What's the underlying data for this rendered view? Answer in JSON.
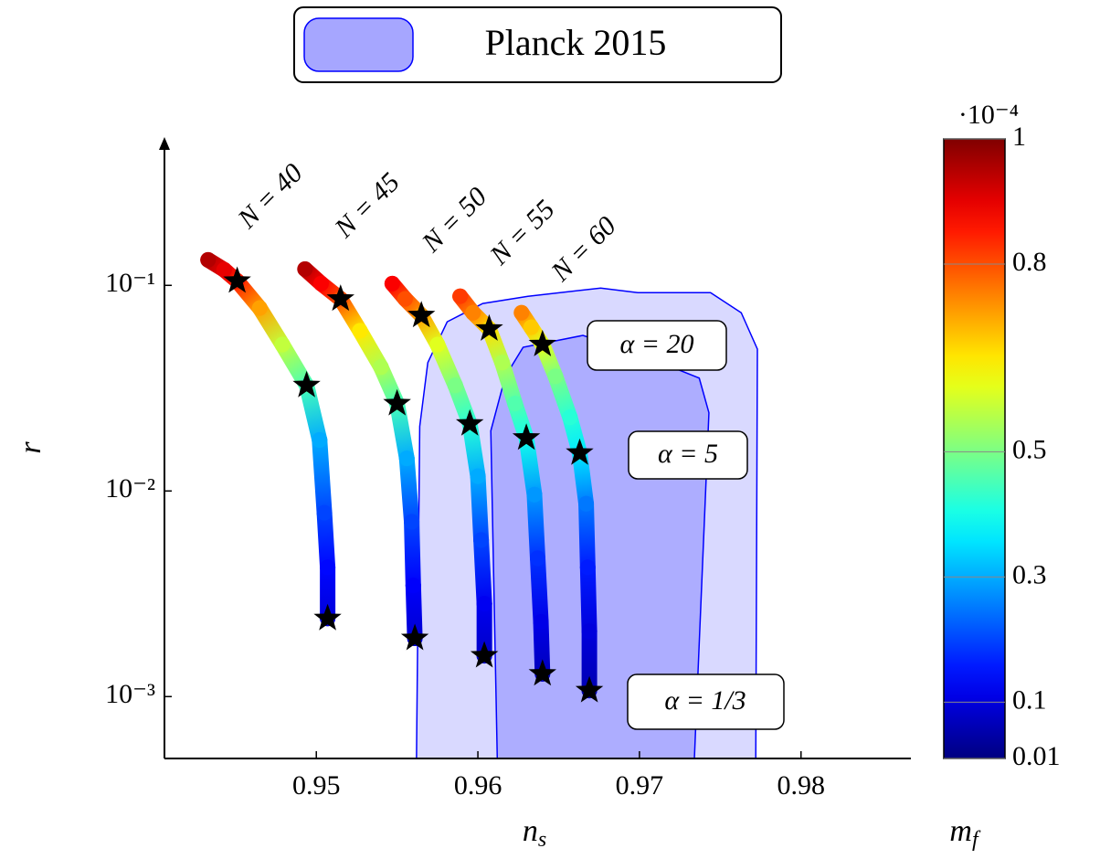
{
  "chart_data": {
    "type": "scatter",
    "x_label": {
      "text": "n",
      "sub": "s"
    },
    "y_label": "r",
    "xlim": [
      0.9406,
      0.9868
    ],
    "xticks": [
      0.95,
      0.96,
      0.97,
      0.98
    ],
    "ylim": [
      0.0005,
      0.5
    ],
    "y_log": true,
    "yticks": [
      {
        "value": 0.1,
        "label": "10⁻¹"
      },
      {
        "value": 0.01,
        "label": "10⁻²"
      },
      {
        "value": 0.001,
        "label": "10⁻³"
      }
    ],
    "colormap": "jet",
    "colorbar": {
      "label": {
        "text": "m",
        "sub": "f"
      },
      "multiplier": "·10⁻⁴",
      "lim": [
        0.01,
        1
      ],
      "ticks": [
        0.01,
        0.1,
        0.3,
        0.5,
        0.8,
        1
      ]
    },
    "legend": "top",
    "regions": [
      {
        "name": "Planck 2015",
        "color": "#0000ff",
        "outer": {
          "x": [
            0.9562,
            0.9564,
            0.9569,
            0.9581,
            0.9603,
            0.9631,
            0.9676,
            0.9699,
            0.9744,
            0.9763,
            0.9773,
            0.9772
          ],
          "y": [
            0.0005,
            0.0206,
            0.0421,
            0.0665,
            0.0816,
            0.0885,
            0.097,
            0.0922,
            0.0922,
            0.0736,
            0.049,
            0.0005
          ]
        },
        "inner": {
          "x": [
            0.9612,
            0.9608,
            0.9617,
            0.9628,
            0.9665,
            0.9699,
            0.9737,
            0.9743,
            0.9734
          ],
          "y": [
            0.0005,
            0.0196,
            0.0361,
            0.05,
            0.0571,
            0.0466,
            0.0354,
            0.024,
            0.0005
          ]
        }
      }
    ],
    "series": [
      {
        "name": "N = 40",
        "x": [
          0.9433,
          0.9443,
          0.9451,
          0.9465,
          0.9479,
          0.9494,
          0.9502,
          0.9505,
          0.9507,
          0.9507
        ],
        "y": [
          0.133,
          0.119,
          0.105,
          0.0775,
          0.0515,
          0.0326,
          0.0177,
          0.00783,
          0.00425,
          0.0024
        ],
        "m_f": [
          0.95,
          0.9,
          0.85,
          0.72,
          0.57,
          0.45,
          0.3,
          0.2,
          0.14,
          0.1
        ],
        "star_x": [
          0.9451,
          0.9494,
          0.9507
        ],
        "star_y": [
          0.105,
          0.0326,
          0.0024
        ]
      },
      {
        "name": "N = 45",
        "x": [
          0.9493,
          0.9503,
          0.9515,
          0.9527,
          0.954,
          0.955,
          0.9556,
          0.9559,
          0.956,
          0.9561
        ],
        "y": [
          0.12,
          0.102,
          0.0859,
          0.0601,
          0.04,
          0.0266,
          0.0144,
          0.00708,
          0.00347,
          0.00192
        ],
        "m_f": [
          0.95,
          0.88,
          0.8,
          0.65,
          0.55,
          0.45,
          0.3,
          0.2,
          0.13,
          0.09
        ],
        "star_x": [
          0.9515,
          0.955,
          0.9561
        ],
        "star_y": [
          0.0859,
          0.0266,
          0.00192
        ]
      },
      {
        "name": "N = 50",
        "x": [
          0.9547,
          0.9555,
          0.9565,
          0.9575,
          0.9586,
          0.9595,
          0.96,
          0.9602,
          0.9604,
          0.9604
        ],
        "y": [
          0.102,
          0.0859,
          0.0714,
          0.0515,
          0.0326,
          0.0212,
          0.0118,
          0.00577,
          0.00283,
          0.00158
        ],
        "m_f": [
          0.88,
          0.8,
          0.72,
          0.6,
          0.5,
          0.42,
          0.3,
          0.2,
          0.12,
          0.08
        ],
        "star_x": [
          0.9565,
          0.9595,
          0.9604
        ],
        "star_y": [
          0.0714,
          0.0212,
          0.00158
        ]
      },
      {
        "name": "N = 55",
        "x": [
          0.9589,
          0.9597,
          0.9607,
          0.9615,
          0.9623,
          0.963,
          0.9635,
          0.9637,
          0.9639,
          0.964
        ],
        "y": [
          0.0885,
          0.0736,
          0.0614,
          0.0421,
          0.0266,
          0.0181,
          0.0096,
          0.00471,
          0.00231,
          0.00129
        ],
        "m_f": [
          0.82,
          0.75,
          0.66,
          0.55,
          0.46,
          0.4,
          0.28,
          0.18,
          0.11,
          0.07
        ],
        "star_x": [
          0.9607,
          0.963,
          0.964
        ],
        "star_y": [
          0.0614,
          0.0181,
          0.00129
        ]
      },
      {
        "name": "N = 60",
        "x": [
          0.9627,
          0.9633,
          0.964,
          0.9648,
          0.9657,
          0.9663,
          0.9667,
          0.9668,
          0.9669,
          0.9669
        ],
        "y": [
          0.0736,
          0.0625,
          0.0515,
          0.0361,
          0.0228,
          0.0153,
          0.00867,
          0.00425,
          0.00208,
          0.00107
        ],
        "m_f": [
          0.75,
          0.68,
          0.6,
          0.5,
          0.42,
          0.36,
          0.25,
          0.16,
          0.1,
          0.06
        ],
        "star_x": [
          0.964,
          0.9663,
          0.9669
        ],
        "star_y": [
          0.0516,
          0.0153,
          0.00107
        ]
      }
    ],
    "annotations": [
      "α = 20",
      "α = 5",
      "α = 1/3"
    ]
  }
}
